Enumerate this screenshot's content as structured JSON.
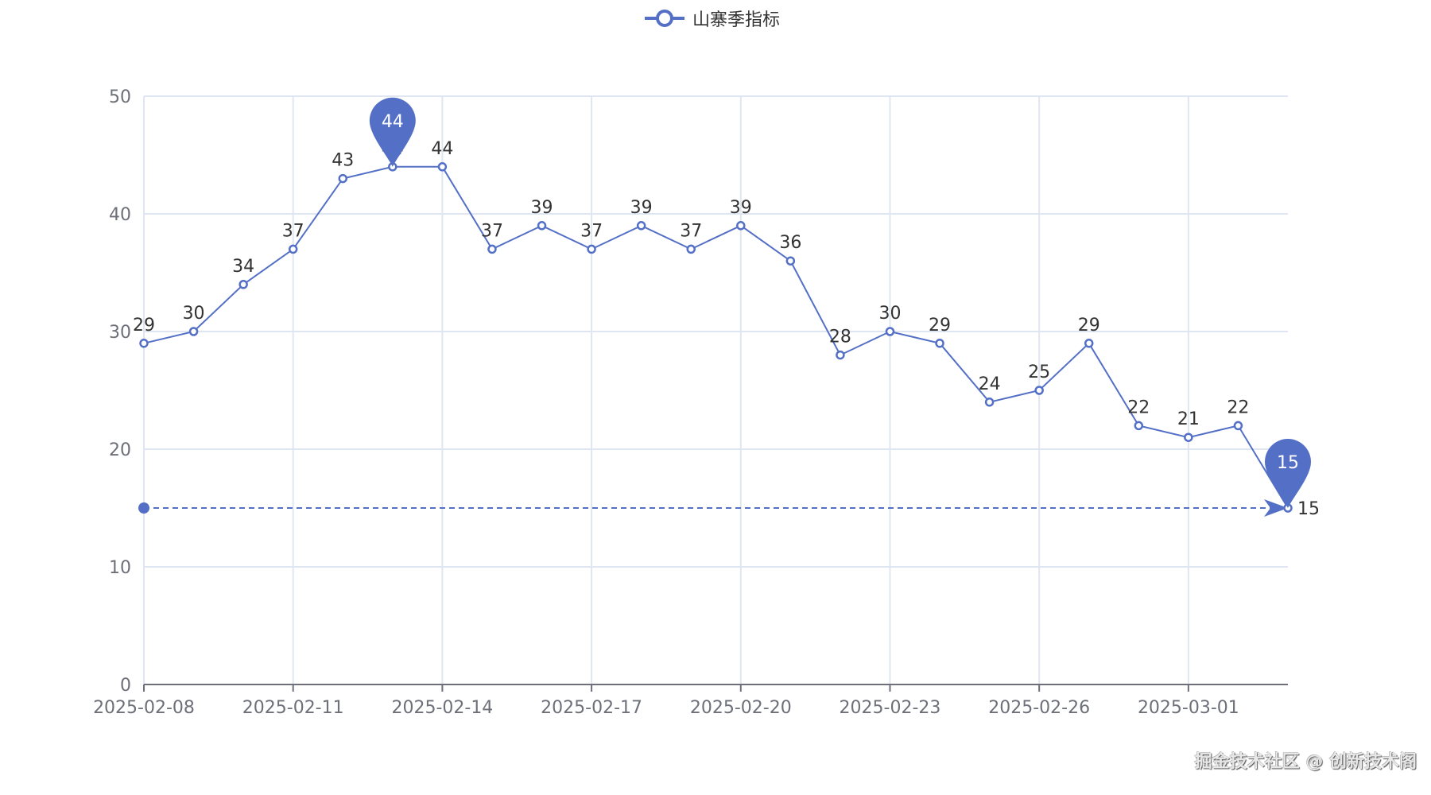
{
  "legend": {
    "label": "山寨季指标",
    "color": "#5470c6"
  },
  "watermark": "掘金技术社区 @ 创新技术阁",
  "chart_data": {
    "type": "line",
    "title": "",
    "xlabel": "",
    "ylabel": "",
    "ylim": [
      0,
      50
    ],
    "yticks": [
      0,
      10,
      20,
      30,
      40,
      50
    ],
    "x": [
      "2025-02-08",
      "2025-02-09",
      "2025-02-10",
      "2025-02-11",
      "2025-02-12",
      "2025-02-13",
      "2025-02-14",
      "2025-02-15",
      "2025-02-16",
      "2025-02-17",
      "2025-02-18",
      "2025-02-19",
      "2025-02-20",
      "2025-02-21",
      "2025-02-22",
      "2025-02-23",
      "2025-02-24",
      "2025-02-25",
      "2025-02-26",
      "2025-02-27",
      "2025-02-28",
      "2025-03-01",
      "2025-03-02",
      "2025-03-03"
    ],
    "xtick_labels": [
      "2025-02-08",
      "2025-02-11",
      "2025-02-14",
      "2025-02-17",
      "2025-02-20",
      "2025-02-23",
      "2025-02-26",
      "2025-03-01"
    ],
    "series": [
      {
        "name": "山寨季指标",
        "values": [
          29,
          30,
          34,
          37,
          43,
          44,
          44,
          37,
          39,
          37,
          39,
          37,
          39,
          36,
          28,
          30,
          29,
          24,
          25,
          29,
          22,
          21,
          22,
          15
        ]
      }
    ],
    "mark_points": [
      {
        "type": "max",
        "label": "44",
        "index": 5
      },
      {
        "type": "min",
        "label": "15",
        "index": 23
      }
    ],
    "mark_line": {
      "type": "min",
      "value": 15,
      "style": "dashed"
    },
    "grid": true,
    "legend_position": "top-center",
    "color": "#5470c6"
  }
}
